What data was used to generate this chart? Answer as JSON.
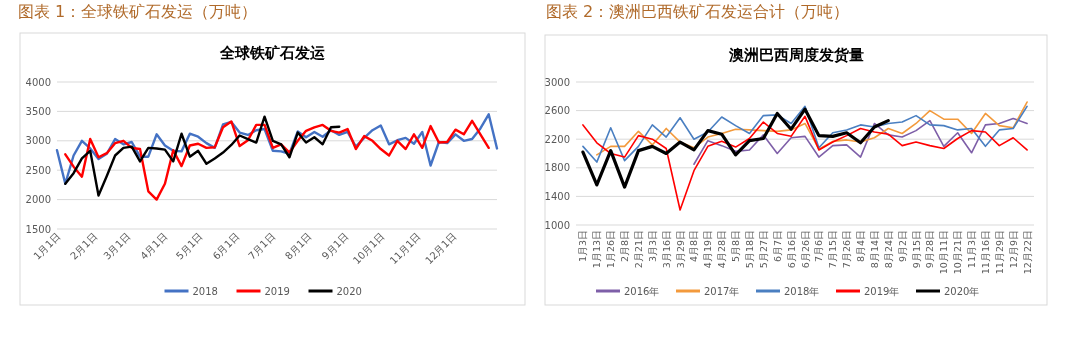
{
  "chart_data": [
    {
      "type": "line",
      "title": "全球铁矿石发运",
      "annotations": [
        "图表 1：全球铁矿石发运（万吨）"
      ],
      "xlim": [
        "2018-01-01",
        "2019-01-07"
      ],
      "ylim": [
        1500,
        4000
      ],
      "yticks": [
        1500,
        2000,
        2500,
        3000,
        3500,
        4000
      ],
      "xticks": [
        {
          "value": "2018-01-01",
          "label": "1月1日"
        },
        {
          "value": "2018-02-01",
          "label": "2月1日"
        },
        {
          "value": "2018-03-01",
          "label": "3月1日"
        },
        {
          "value": "2018-04-01",
          "label": "4月1日"
        },
        {
          "value": "2018-05-01",
          "label": "5月1日"
        },
        {
          "value": "2018-06-01",
          "label": "6月1日"
        },
        {
          "value": "2018-07-01",
          "label": "7月1日"
        },
        {
          "value": "2018-08-01",
          "label": "8月1日"
        },
        {
          "value": "2018-09-01",
          "label": "9月1日"
        },
        {
          "value": "2018-10-01",
          "label": "10月1日"
        },
        {
          "value": "2018-11-01",
          "label": "11月1日"
        },
        {
          "value": "2018-12-01",
          "label": "12月1日"
        }
      ],
      "grid": "y",
      "legend": "bottom",
      "marker": "none",
      "line_style": "solid",
      "series": [
        {
          "name": "2018",
          "color": "#4472c4",
          "x": [
            "2018-01-01",
            "2018-01-08",
            "2018-01-15",
            "2018-01-22",
            "2018-01-29",
            "2018-02-05",
            "2018-02-12",
            "2018-02-19",
            "2018-02-26",
            "2018-03-05",
            "2018-03-12",
            "2018-03-19",
            "2018-03-26",
            "2018-04-02",
            "2018-04-09",
            "2018-04-16",
            "2018-04-23",
            "2018-04-30",
            "2018-05-07",
            "2018-05-14",
            "2018-05-21",
            "2018-05-28",
            "2018-06-04",
            "2018-06-11",
            "2018-06-18",
            "2018-06-25",
            "2018-07-02",
            "2018-07-09",
            "2018-07-16",
            "2018-07-23",
            "2018-07-30",
            "2018-08-06",
            "2018-08-13",
            "2018-08-20",
            "2018-08-27",
            "2018-09-03",
            "2018-09-10",
            "2018-09-17",
            "2018-09-24",
            "2018-10-01",
            "2018-10-08",
            "2018-10-15",
            "2018-10-22",
            "2018-10-29",
            "2018-11-05",
            "2018-11-12",
            "2018-11-19",
            "2018-11-26",
            "2018-12-03",
            "2018-12-10",
            "2018-12-17",
            "2018-12-24",
            "2018-12-31",
            "2019-01-07"
          ],
          "values": [
            2840,
            2270,
            2750,
            3000,
            2870,
            2690,
            2780,
            3030,
            2940,
            2980,
            2730,
            2730,
            3110,
            2920,
            2830,
            2820,
            3120,
            3070,
            2960,
            2880,
            3280,
            3320,
            3140,
            3100,
            3180,
            3200,
            2830,
            2820,
            2780,
            3160,
            3060,
            3150,
            3070,
            3180,
            3100,
            3150,
            2900,
            3050,
            3180,
            3260,
            2940,
            3010,
            3050,
            2950,
            3150,
            2580,
            2980,
            2960,
            3110,
            3000,
            3030,
            3210,
            3450,
            2870
          ]
        },
        {
          "name": "2019",
          "color": "#ff0000",
          "x": [
            "2018-01-08",
            "2018-01-15",
            "2018-01-22",
            "2018-01-29",
            "2018-02-05",
            "2018-02-12",
            "2018-02-19",
            "2018-02-26",
            "2018-03-05",
            "2018-03-12",
            "2018-03-19",
            "2018-03-26",
            "2018-04-02",
            "2018-04-09",
            "2018-04-16",
            "2018-04-23",
            "2018-04-30",
            "2018-05-07",
            "2018-05-14",
            "2018-05-21",
            "2018-05-28",
            "2018-06-04",
            "2018-06-11",
            "2018-06-18",
            "2018-06-25",
            "2018-07-02",
            "2018-07-09",
            "2018-07-16",
            "2018-07-23",
            "2018-07-30",
            "2018-08-06",
            "2018-08-13",
            "2018-08-20",
            "2018-08-27",
            "2018-09-03",
            "2018-09-10",
            "2018-09-17",
            "2018-09-24",
            "2018-10-01",
            "2018-10-08",
            "2018-10-15",
            "2018-10-22",
            "2018-10-29",
            "2018-11-05",
            "2018-11-12",
            "2018-11-19",
            "2018-11-26",
            "2018-12-03",
            "2018-12-10",
            "2018-12-17",
            "2018-12-31"
          ],
          "values": [
            2770,
            2560,
            2390,
            3030,
            2720,
            2790,
            2960,
            3000,
            2880,
            2860,
            2140,
            2000,
            2270,
            2840,
            2570,
            2920,
            2950,
            2880,
            2890,
            3230,
            3330,
            2910,
            3010,
            3270,
            3270,
            2880,
            2940,
            2800,
            3000,
            3170,
            3230,
            3270,
            3170,
            3140,
            3200,
            2860,
            3080,
            3000,
            2860,
            2750,
            3000,
            2860,
            3110,
            2880,
            3250,
            2970,
            2980,
            3190,
            3110,
            3340,
            2880
          ]
        },
        {
          "name": "2020",
          "color": "#000000",
          "x": [
            "2018-01-08",
            "2018-01-15",
            "2018-01-22",
            "2018-01-29",
            "2018-02-05",
            "2018-02-12",
            "2018-02-19",
            "2018-02-26",
            "2018-03-05",
            "2018-03-12",
            "2018-03-19",
            "2018-03-26",
            "2018-04-02",
            "2018-04-09",
            "2018-04-16",
            "2018-04-23",
            "2018-04-30",
            "2018-05-07",
            "2018-05-14",
            "2018-05-21",
            "2018-05-28",
            "2018-06-04",
            "2018-06-11",
            "2018-06-18",
            "2018-06-25",
            "2018-07-02",
            "2018-07-09",
            "2018-07-16",
            "2018-07-23",
            "2018-07-30",
            "2018-08-06",
            "2018-08-13",
            "2018-08-20",
            "2018-08-27"
          ],
          "values": [
            2270,
            2450,
            2700,
            2830,
            2070,
            2400,
            2750,
            2880,
            2900,
            2650,
            2880,
            2870,
            2850,
            2650,
            3120,
            2730,
            2830,
            2610,
            2700,
            2800,
            2930,
            3090,
            3030,
            2970,
            3410,
            3000,
            2940,
            2720,
            3140,
            2970,
            3060,
            2940,
            3230,
            3240
          ]
        }
      ]
    },
    {
      "type": "line",
      "title": "澳洲巴西周度发货量",
      "annotations": [
        "图表 2：澳洲巴西铁矿石发运合计（万吨）"
      ],
      "categories": [
        "1月3日",
        "1月13日",
        "1月26日",
        "2月8日",
        "2月21日",
        "3月3日",
        "3月16日",
        "3月29日",
        "4月8日",
        "4月19日",
        "4月28日",
        "5月8日",
        "5月18日",
        "5月27日",
        "6月7日",
        "6月16日",
        "6月26日",
        "7月6日",
        "7月15日",
        "7月26日",
        "8月4日",
        "8月14日",
        "8月24日",
        "9月2日",
        "9月15日",
        "9月28日",
        "10月11日",
        "10月21日",
        "11月3日",
        "11月16日",
        "11月29日",
        "12月9日",
        "12月22日"
      ],
      "ylim": [
        1000,
        3000
      ],
      "yticks": [
        1000,
        1400,
        1800,
        2200,
        2600,
        3000
      ],
      "grid": "y",
      "legend": "bottom",
      "marker": "none",
      "line_style": "solid",
      "series": [
        {
          "name": "2016年",
          "color": "#7e5fa8",
          "values": [
            null,
            null,
            null,
            null,
            null,
            null,
            null,
            null,
            1850,
            2180,
            2110,
            2030,
            2050,
            2260,
            2000,
            2220,
            2240,
            1950,
            2110,
            2120,
            1950,
            2420,
            2260,
            2230,
            2320,
            2460,
            2100,
            2290,
            2010,
            2400,
            2420,
            2490,
            2420
          ]
        },
        {
          "name": "2017年",
          "color": "#f39a3c",
          "values": [
            null,
            1980,
            2100,
            2100,
            2310,
            2120,
            2350,
            2160,
            2080,
            2230,
            2280,
            2340,
            2330,
            2320,
            2310,
            2330,
            2420,
            2060,
            2170,
            2190,
            2160,
            2220,
            2350,
            2280,
            2420,
            2600,
            2480,
            2480,
            2280,
            2560,
            2390,
            2360,
            2720
          ]
        },
        {
          "name": "2018年",
          "color": "#4a7fc1",
          "values": [
            2100,
            1880,
            2360,
            1900,
            2100,
            2400,
            2230,
            2500,
            2200,
            2300,
            2510,
            2390,
            2280,
            2530,
            2540,
            2420,
            2660,
            2080,
            2290,
            2330,
            2400,
            2370,
            2420,
            2440,
            2530,
            2400,
            2390,
            2330,
            2350,
            2100,
            2330,
            2350,
            2660
          ]
        },
        {
          "name": "2019年",
          "color": "#ff0000",
          "values": [
            2400,
            2150,
            2000,
            1950,
            2250,
            2200,
            2070,
            1210,
            1760,
            2100,
            2170,
            2090,
            2210,
            2440,
            2280,
            2240,
            2520,
            2050,
            2160,
            2250,
            2350,
            2300,
            2270,
            2110,
            2160,
            2110,
            2070,
            2210,
            2320,
            2300,
            2110,
            2220,
            2050
          ]
        },
        {
          "name": "2020年",
          "color": "#000000",
          "values": [
            2020,
            1560,
            2040,
            1530,
            2040,
            2100,
            2000,
            2160,
            2050,
            2320,
            2270,
            1980,
            2180,
            2210,
            2560,
            2340,
            2620,
            2250,
            2240,
            2290,
            2150,
            2370,
            2460,
            null,
            null,
            null,
            null,
            null,
            null,
            null,
            null,
            null,
            null
          ]
        }
      ]
    }
  ]
}
